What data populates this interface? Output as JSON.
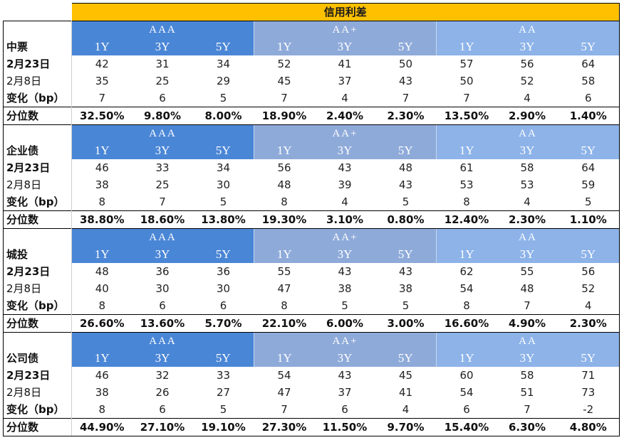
{
  "title": "信用利差",
  "grades": [
    "AAA",
    "AA+",
    "AA"
  ],
  "tenors": [
    "1Y",
    "3Y",
    "5Y"
  ],
  "row_labels": {
    "current": "2月23日",
    "prev": "2月8日",
    "change": "变化（bp）",
    "pct": "分位数"
  },
  "sections": [
    {
      "name": "中票",
      "current": [
        "42",
        "31",
        "34",
        "52",
        "41",
        "50",
        "57",
        "56",
        "64"
      ],
      "prev": [
        "35",
        "25",
        "29",
        "45",
        "37",
        "43",
        "50",
        "52",
        "58"
      ],
      "change": [
        "7",
        "6",
        "5",
        "7",
        "4",
        "7",
        "7",
        "4",
        "6"
      ],
      "pct": [
        "32.50%",
        "9.80%",
        "8.00%",
        "18.90%",
        "2.40%",
        "2.30%",
        "13.50%",
        "2.90%",
        "1.40%"
      ]
    },
    {
      "name": "企业债",
      "current": [
        "46",
        "33",
        "34",
        "56",
        "43",
        "48",
        "61",
        "58",
        "64"
      ],
      "prev": [
        "38",
        "25",
        "30",
        "48",
        "39",
        "43",
        "53",
        "53",
        "59"
      ],
      "change": [
        "8",
        "7",
        "5",
        "8",
        "4",
        "5",
        "8",
        "4",
        "5"
      ],
      "pct": [
        "38.80%",
        "18.60%",
        "13.80%",
        "19.30%",
        "3.10%",
        "0.80%",
        "12.40%",
        "2.30%",
        "1.10%"
      ]
    },
    {
      "name": "城投",
      "current": [
        "48",
        "36",
        "36",
        "55",
        "43",
        "43",
        "62",
        "55",
        "56"
      ],
      "prev": [
        "40",
        "30",
        "30",
        "47",
        "38",
        "38",
        "54",
        "48",
        "52"
      ],
      "change": [
        "8",
        "6",
        "6",
        "8",
        "5",
        "5",
        "8",
        "7",
        "4"
      ],
      "pct": [
        "26.60%",
        "13.60%",
        "5.70%",
        "22.10%",
        "6.00%",
        "3.00%",
        "16.60%",
        "4.90%",
        "2.30%"
      ]
    },
    {
      "name": "公司债",
      "current": [
        "46",
        "32",
        "33",
        "54",
        "43",
        "45",
        "60",
        "58",
        "71"
      ],
      "prev": [
        "38",
        "26",
        "27",
        "47",
        "37",
        "41",
        "54",
        "51",
        "73"
      ],
      "change": [
        "8",
        "6",
        "5",
        "7",
        "6",
        "4",
        "6",
        "7",
        "-2"
      ],
      "pct": [
        "44.90%",
        "27.10%",
        "19.10%",
        "27.30%",
        "11.50%",
        "9.70%",
        "15.40%",
        "6.30%",
        "4.80%"
      ]
    }
  ],
  "colors": {
    "title_bg": "#ffc000",
    "aaa_bg": "#4a86d6",
    "aa_plus_bg": "#8eaad9",
    "aa_bg": "#8db3e8"
  }
}
